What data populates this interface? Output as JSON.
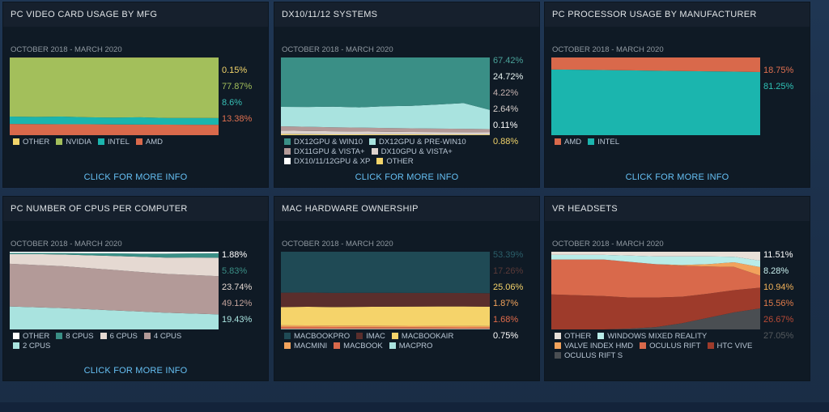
{
  "panels": [
    {
      "title": "PC VIDEO CARD USAGE BY MFG",
      "date_range": "OCTOBER 2018 - MARCH 2020",
      "more": "CLICK FOR MORE INFO",
      "values": [
        {
          "text": "0.15%",
          "color": "#f2d46a"
        },
        {
          "text": "77.87%",
          "color": "#a3bf5b"
        },
        {
          "text": "8.6%",
          "color": "#38c0b6"
        },
        {
          "text": "13.38%",
          "color": "#e07050"
        }
      ],
      "legend": [
        {
          "label": "OTHER",
          "color": "#f2d46a"
        },
        {
          "label": "NVIDIA",
          "color": "#a3bf5b"
        },
        {
          "label": "INTEL",
          "color": "#1bb5ae"
        },
        {
          "label": "AMD",
          "color": "#d9694b"
        }
      ]
    },
    {
      "title": "DX10/11/12 SYSTEMS",
      "date_range": "OCTOBER 2018 - MARCH 2020",
      "more": "CLICK FOR MORE INFO",
      "values": [
        {
          "text": "67.42%",
          "color": "#4aa39a"
        },
        {
          "text": "24.72%",
          "color": "#e8f4f2"
        },
        {
          "text": "4.22%",
          "color": "#c6b2b0"
        },
        {
          "text": "2.64%",
          "color": "#d8d0cc"
        },
        {
          "text": "0.11%",
          "color": "#ffffff"
        },
        {
          "text": "0.88%",
          "color": "#f2d46a"
        }
      ],
      "legend": [
        {
          "label": "DX12GPU & WIN10",
          "color": "#3a8f86"
        },
        {
          "label": "DX12GPU & PRE-WIN10",
          "color": "#a9e3df"
        },
        {
          "label": "DX11GPU & VISTA+",
          "color": "#b39a98"
        },
        {
          "label": "DX10GPU & VISTA+",
          "color": "#ddd2cd"
        },
        {
          "label": "DX10/11/12GPU & XP",
          "color": "#ffffff"
        },
        {
          "label": "OTHER",
          "color": "#f2d46a"
        }
      ]
    },
    {
      "title": "PC PROCESSOR USAGE BY MANUFACTURER",
      "date_range": "OCTOBER 2018 - MARCH 2020",
      "more": "CLICK FOR MORE INFO",
      "values": [
        {
          "text": "18.75%",
          "color": "#e07050"
        },
        {
          "text": "81.25%",
          "color": "#2fc2b6"
        }
      ],
      "legend": [
        {
          "label": "AMD",
          "color": "#d9694b"
        },
        {
          "label": "INTEL",
          "color": "#1bb5ae"
        }
      ]
    },
    {
      "title": "PC NUMBER OF CPUS PER COMPUTER",
      "date_range": "OCTOBER 2018 - MARCH 2020",
      "more": "CLICK FOR MORE INFO",
      "values": [
        {
          "text": "1.88%",
          "color": "#ffffff"
        },
        {
          "text": "5.83%",
          "color": "#3a8f86"
        },
        {
          "text": "23.74%",
          "color": "#e5d9d2"
        },
        {
          "text": "49.12%",
          "color": "#c3a39c"
        },
        {
          "text": "19.43%",
          "color": "#a9e3df"
        }
      ],
      "legend": [
        {
          "label": "OTHER",
          "color": "#ffffff"
        },
        {
          "label": "8 CPUS",
          "color": "#3a8f86"
        },
        {
          "label": "6 CPUS",
          "color": "#e5d9d2"
        },
        {
          "label": "4 CPUS",
          "color": "#b39a98"
        },
        {
          "label": "2 CPUS",
          "color": "#a9e3df"
        }
      ]
    },
    {
      "title": "MAC HARDWARE OWNERSHIP",
      "date_range": "OCTOBER 2018 - MARCH 2020",
      "more": "",
      "values": [
        {
          "text": "53.39%",
          "color": "#2b5f6a"
        },
        {
          "text": "17.26%",
          "color": "#5a3a38"
        },
        {
          "text": "25.06%",
          "color": "#f5d36a"
        },
        {
          "text": "1.87%",
          "color": "#f2a35c"
        },
        {
          "text": "1.68%",
          "color": "#e06b4a"
        },
        {
          "text": "0.75%",
          "color": "#ffffff"
        }
      ],
      "legend": [
        {
          "label": "MACBOOKPRO",
          "color": "#1f4a55"
        },
        {
          "label": "IMAC",
          "color": "#5a2e2c"
        },
        {
          "label": "MACBOOKAIR",
          "color": "#f5d36a"
        },
        {
          "label": "MACMINI",
          "color": "#f2a35c"
        },
        {
          "label": "MACBOOK",
          "color": "#d9694b"
        },
        {
          "label": "MACPRO",
          "color": "#a9e3df"
        }
      ]
    },
    {
      "title": "VR HEADSETS",
      "date_range": "OCTOBER 2018 - MARCH 2020",
      "more": "",
      "values": [
        {
          "text": "11.51%",
          "color": "#ffffff"
        },
        {
          "text": "8.28%",
          "color": "#c9f0ee"
        },
        {
          "text": "10.94%",
          "color": "#f2b25a"
        },
        {
          "text": "15.56%",
          "color": "#e07b4a"
        },
        {
          "text": "26.67%",
          "color": "#b84a36"
        },
        {
          "text": "27.05%",
          "color": "#555a5e"
        }
      ],
      "legend": [
        {
          "label": "OTHER",
          "color": "#e8e0d8"
        },
        {
          "label": "WINDOWS MIXED REALITY",
          "color": "#b8ece8"
        },
        {
          "label": "VALVE INDEX HMD",
          "color": "#f2a35c"
        },
        {
          "label": "OCULUS RIFT",
          "color": "#d9694b"
        },
        {
          "label": "HTC VIVE",
          "color": "#9e3b2b"
        },
        {
          "label": "OCULUS RIFT S",
          "color": "#4a4e52"
        }
      ]
    }
  ],
  "chart_data": [
    {
      "type": "area",
      "title": "PC VIDEO CARD USAGE BY MFG",
      "subtitle": "OCTOBER 2018 - MARCH 2020",
      "ylim": [
        0,
        100
      ],
      "series": [
        {
          "name": "AMD",
          "color": "#d9694b",
          "values": [
            14.5,
            14.3,
            14.1,
            14.0,
            13.8,
            13.7,
            13.5,
            13.4,
            13.38
          ]
        },
        {
          "name": "INTEL",
          "color": "#1bb5ae",
          "values": [
            9.5,
            9.3,
            9.8,
            9.0,
            8.9,
            9.4,
            8.7,
            8.8,
            8.6
          ]
        },
        {
          "name": "NVIDIA",
          "color": "#a3bf5b",
          "values": [
            75.8,
            76.2,
            75.9,
            76.8,
            77.1,
            76.7,
            77.6,
            77.65,
            77.87
          ]
        },
        {
          "name": "OTHER",
          "color": "#f2d46a",
          "values": [
            0.2,
            0.2,
            0.2,
            0.2,
            0.2,
            0.2,
            0.2,
            0.15,
            0.15
          ]
        }
      ]
    },
    {
      "type": "area",
      "title": "DX10/11/12 SYSTEMS",
      "subtitle": "OCTOBER 2018 - MARCH 2020",
      "ylim": [
        0,
        100
      ],
      "series": [
        {
          "name": "OTHER",
          "color": "#f2d46a",
          "values": [
            1.5,
            1.3,
            1.2,
            1.1,
            1.0,
            1.0,
            0.9,
            0.9,
            0.88
          ]
        },
        {
          "name": "DX10/11/12GPU & XP",
          "color": "#ffffff",
          "values": [
            0.5,
            0.4,
            0.3,
            0.3,
            0.2,
            0.2,
            0.2,
            0.15,
            0.11
          ]
        },
        {
          "name": "DX10GPU & VISTA+",
          "color": "#ddd2cd",
          "values": [
            4.0,
            3.8,
            3.6,
            3.4,
            3.2,
            3.0,
            2.9,
            2.8,
            2.64
          ]
        },
        {
          "name": "DX11GPU & VISTA+",
          "color": "#b39a98",
          "values": [
            5.5,
            5.3,
            5.1,
            5.0,
            4.8,
            4.6,
            4.5,
            4.4,
            4.22
          ]
        },
        {
          "name": "DX12GPU & PRE-WIN10",
          "color": "#a9e3df",
          "values": [
            25.0,
            25.5,
            26.5,
            26.0,
            28.0,
            29.0,
            31.0,
            33.0,
            24.72
          ]
        },
        {
          "name": "DX12GPU & WIN10",
          "color": "#3a8f86",
          "values": [
            63.5,
            63.7,
            63.3,
            64.2,
            62.8,
            62.2,
            60.5,
            58.75,
            67.42
          ]
        }
      ]
    },
    {
      "type": "area",
      "title": "PC PROCESSOR USAGE BY MANUFACTURER",
      "subtitle": "OCTOBER 2018 - MARCH 2020",
      "ylim": [
        0,
        100
      ],
      "series": [
        {
          "name": "INTEL",
          "color": "#1bb5ae",
          "values": [
            84.5,
            84.2,
            83.8,
            83.5,
            83.0,
            82.6,
            82.2,
            81.8,
            81.25
          ]
        },
        {
          "name": "AMD",
          "color": "#d9694b",
          "values": [
            15.5,
            15.8,
            16.2,
            16.5,
            17.0,
            17.4,
            17.8,
            18.2,
            18.75
          ]
        }
      ]
    },
    {
      "type": "area",
      "title": "PC NUMBER OF CPUS PER COMPUTER",
      "subtitle": "OCTOBER 2018 - MARCH 2020",
      "ylim": [
        0,
        100
      ],
      "series": [
        {
          "name": "2 CPUS",
          "color": "#a9e3df",
          "values": [
            29.5,
            28.5,
            27.5,
            26.0,
            24.5,
            23.0,
            21.5,
            20.5,
            19.43
          ]
        },
        {
          "name": "4 CPUS",
          "color": "#b39a98",
          "values": [
            55.0,
            54.5,
            54.0,
            53.0,
            52.0,
            51.0,
            50.0,
            49.6,
            49.12
          ]
        },
        {
          "name": "6 CPUS",
          "color": "#e5d9d2",
          "values": [
            12.5,
            14.0,
            15.0,
            16.5,
            18.0,
            19.5,
            21.0,
            22.5,
            23.74
          ]
        },
        {
          "name": "8 CPUS",
          "color": "#3a8f86",
          "values": [
            1.5,
            1.5,
            2.0,
            2.5,
            3.5,
            4.0,
            5.0,
            5.3,
            5.83
          ]
        },
        {
          "name": "OTHER",
          "color": "#ffffff",
          "values": [
            1.5,
            1.5,
            1.5,
            2.0,
            2.0,
            2.5,
            2.5,
            2.1,
            1.88
          ]
        }
      ]
    },
    {
      "type": "area",
      "title": "MAC HARDWARE OWNERSHIP",
      "subtitle": "OCTOBER 2018 - MARCH 2020",
      "ylim": [
        0,
        100
      ],
      "series": [
        {
          "name": "MACPRO",
          "color": "#a9e3df",
          "values": [
            0.8,
            0.8,
            0.8,
            0.8,
            0.8,
            0.8,
            0.8,
            0.8,
            0.75
          ]
        },
        {
          "name": "MACBOOK",
          "color": "#d9694b",
          "values": [
            2.5,
            2.4,
            2.3,
            2.2,
            2.1,
            2.0,
            1.9,
            1.8,
            1.68
          ]
        },
        {
          "name": "MACMINI",
          "color": "#f2a35c",
          "values": [
            2.0,
            2.0,
            1.9,
            1.9,
            1.9,
            1.9,
            1.9,
            1.9,
            1.87
          ]
        },
        {
          "name": "MACBOOKAIR",
          "color": "#f5d36a",
          "values": [
            23.5,
            24.0,
            23.8,
            24.2,
            24.5,
            24.7,
            24.9,
            25.0,
            25.06
          ]
        },
        {
          "name": "IMAC",
          "color": "#5a2e2c",
          "values": [
            18.5,
            18.3,
            18.2,
            18.0,
            17.8,
            17.6,
            17.5,
            17.4,
            17.26
          ]
        },
        {
          "name": "MACBOOKPRO",
          "color": "#1f4a55",
          "values": [
            52.7,
            52.5,
            53.0,
            52.9,
            52.9,
            53.0,
            53.0,
            53.1,
            53.39
          ]
        }
      ]
    },
    {
      "type": "area",
      "title": "VR HEADSETS",
      "subtitle": "OCTOBER 2018 - MARCH 2020",
      "ylim": [
        0,
        100
      ],
      "series": [
        {
          "name": "OCULUS RIFT S",
          "color": "#4a4e52",
          "values": [
            0,
            0,
            0,
            1,
            3,
            8,
            15,
            22,
            27.05
          ]
        },
        {
          "name": "HTC VIVE",
          "color": "#9e3b2b",
          "values": [
            45,
            44,
            43,
            40,
            38,
            34,
            31,
            28.5,
            26.67
          ]
        },
        {
          "name": "OCULUS RIFT",
          "color": "#d9694b",
          "values": [
            45,
            46,
            47,
            46,
            43,
            40,
            35,
            30,
            15.56
          ]
        },
        {
          "name": "VALVE INDEX HMD",
          "color": "#f2a35c",
          "values": [
            0,
            0,
            0,
            0,
            0,
            1,
            3,
            6,
            10.94
          ]
        },
        {
          "name": "WINDOWS MIXED REALITY",
          "color": "#b8ece8",
          "values": [
            6,
            6,
            6,
            8,
            10,
            11,
            10,
            7,
            8.28
          ]
        },
        {
          "name": "OTHER",
          "color": "#e8e0d8",
          "values": [
            4,
            4,
            4,
            5,
            6,
            6,
            6,
            6.5,
            11.51
          ]
        }
      ]
    }
  ]
}
